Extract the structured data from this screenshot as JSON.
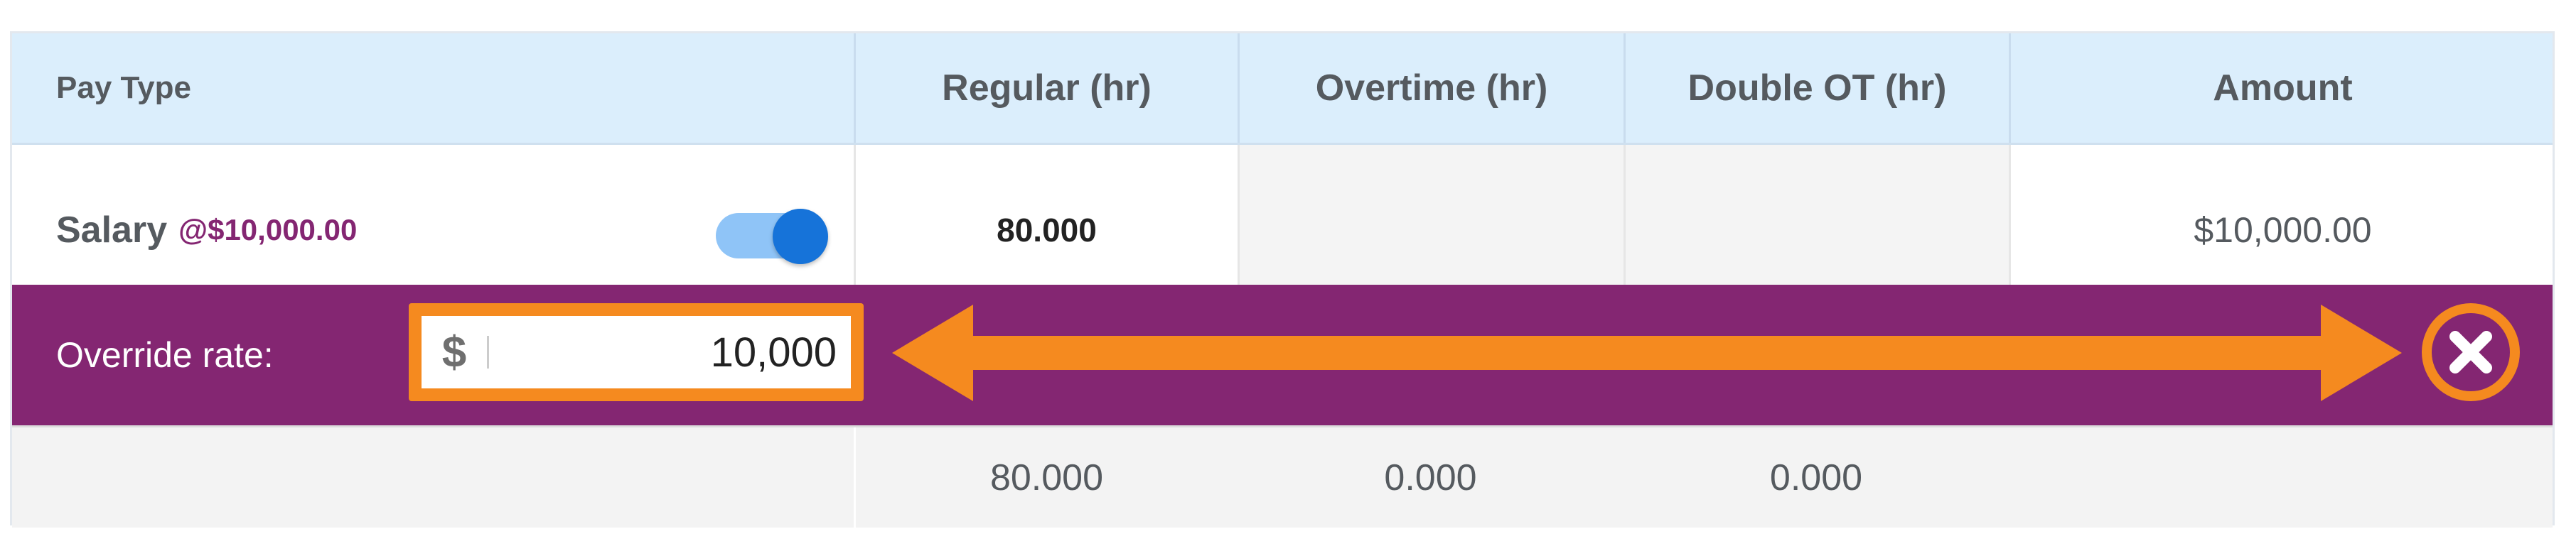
{
  "header": {
    "columns": [
      "Pay Type",
      "Regular (hr)",
      "Overtime (hr)",
      "Double OT (hr)",
      "Amount"
    ]
  },
  "rows": [
    {
      "pay_type": "Salary",
      "rate_label": "@$10,000.00",
      "toggle_on": true,
      "regular": "80.000",
      "overtime": "",
      "double_ot": "",
      "amount": "$10,000.00"
    }
  ],
  "override": {
    "label": "Override rate:",
    "currency_symbol": "$",
    "value": "10,000"
  },
  "totals": {
    "regular": "80.000",
    "overtime": "0.000",
    "double_ot": "0.000"
  },
  "colors": {
    "accent_purple": "#842672",
    "highlight_orange": "#f58a1f",
    "header_bg": "#dbeefc",
    "toggle_blue": "#1673d9"
  },
  "icons": {
    "toggle": "toggle-switch",
    "close": "close-x-icon",
    "annotation": "double-headed-arrow"
  }
}
